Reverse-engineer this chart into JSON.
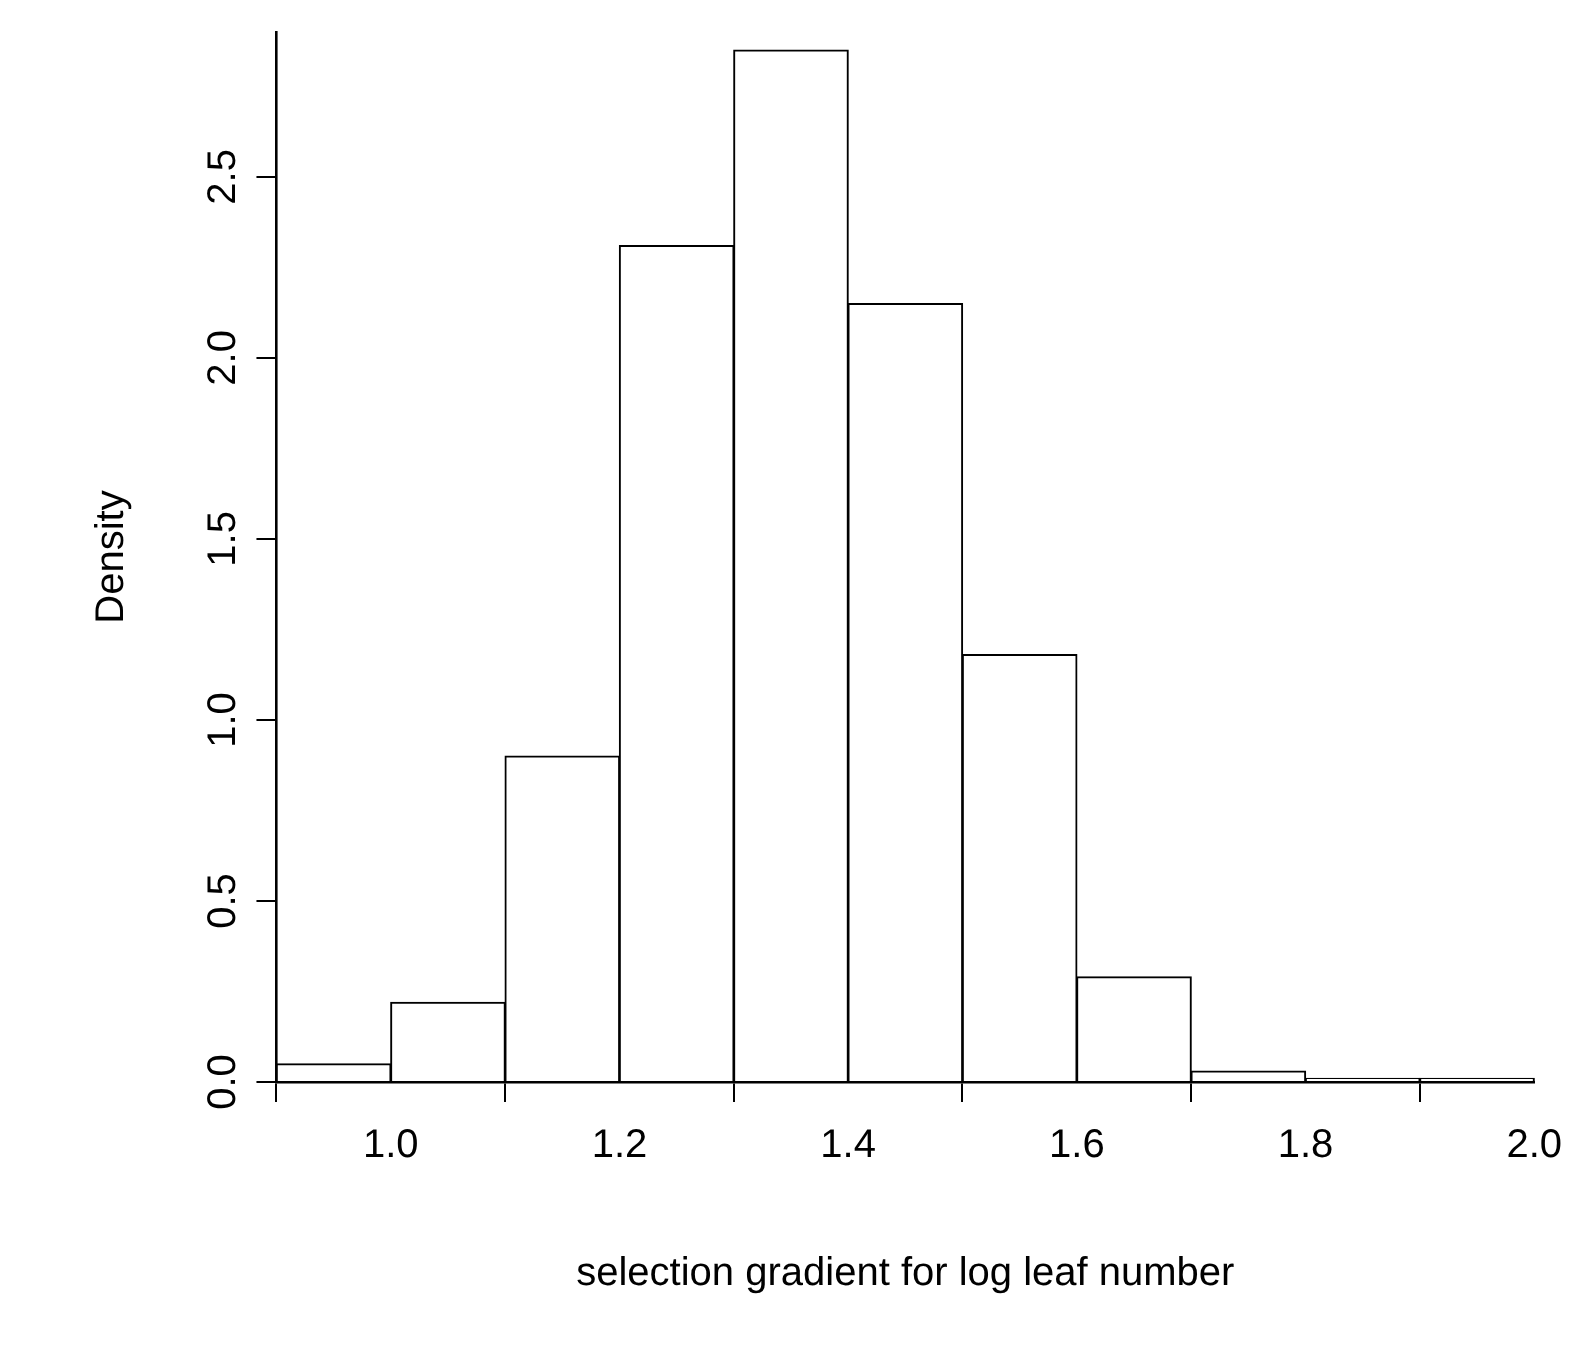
{
  "chart_data": {
    "type": "histogram",
    "xlabel": "selection gradient for log leaf number",
    "ylabel": "Density",
    "bins": [
      0.9,
      1.0,
      1.1,
      1.2,
      1.3,
      1.4,
      1.5,
      1.6,
      1.7,
      1.8,
      1.9,
      2.0
    ],
    "values": [
      0.05,
      0.22,
      0.9,
      2.31,
      2.85,
      2.15,
      1.18,
      0.29,
      0.03,
      0.01,
      0.01
    ],
    "color": "#ffffff",
    "xlim": [
      0.9,
      2.0
    ],
    "xticks": [
      {
        "value": 1.0,
        "label": "1.0"
      },
      {
        "value": 1.2,
        "label": "1.2"
      },
      {
        "value": 1.4,
        "label": "1.4"
      },
      {
        "value": 1.6,
        "label": "1.6"
      },
      {
        "value": 1.8,
        "label": "1.8"
      },
      {
        "value": 2.0,
        "label": "2.0"
      }
    ],
    "ylim": [
      0,
      2.9
    ],
    "yticks": [
      {
        "value": 0,
        "label": "0.0"
      },
      {
        "value": 0.5,
        "label": "0.5"
      },
      {
        "value": 1.0,
        "label": "1.0"
      },
      {
        "value": 1.5,
        "label": "1.5"
      },
      {
        "value": 2.0,
        "label": "2.0"
      },
      {
        "value": 2.5,
        "label": "2.5"
      }
    ],
    "grid": false,
    "legend": false
  }
}
